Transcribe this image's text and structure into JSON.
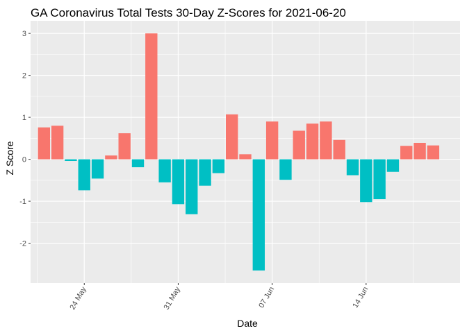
{
  "chart_data": {
    "type": "bar",
    "title": "GA Coronavirus Total Tests 30-Day Z-Scores for 2021-06-20",
    "xlabel": "Date",
    "ylabel": "Z Score",
    "x_start": "2021-05-21",
    "x_end": "2021-06-20",
    "xlim": [
      "2021-05-20",
      "2021-06-21"
    ],
    "ylim": [
      -2.95,
      3.3
    ],
    "x_ticks": [
      {
        "date": "2021-05-24",
        "label": "24 May"
      },
      {
        "date": "2021-05-31",
        "label": "31 May"
      },
      {
        "date": "2021-06-07",
        "label": "07 Jun"
      },
      {
        "date": "2021-06-14",
        "label": "14 Jun"
      }
    ],
    "y_ticks": [
      -2,
      -1,
      0,
      1,
      2,
      3
    ],
    "grid": true,
    "panel_background": "#ebebeb",
    "colors": {
      "positive": "#f8766d",
      "negative": "#00bfc4"
    },
    "values": [
      0.76,
      0.8,
      -0.04,
      -0.74,
      -0.46,
      0.09,
      0.62,
      -0.19,
      3.0,
      -0.55,
      -1.07,
      -1.31,
      -0.63,
      -0.33,
      1.07,
      0.12,
      -2.65,
      0.9,
      -0.49,
      0.68,
      0.85,
      0.9,
      0.46,
      -0.38,
      -1.02,
      -0.95,
      -0.3,
      0.32,
      0.39,
      0.33
    ]
  }
}
